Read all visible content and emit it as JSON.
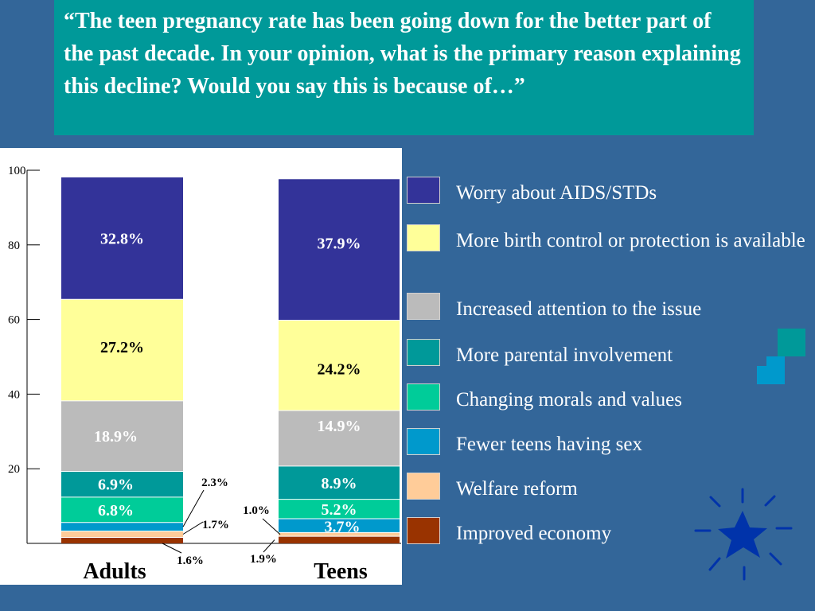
{
  "question": "“The teen pregnancy rate has been going down for the better part of the past decade.  In your opinion, what is the primary reason explaining this decline?  Would you say this is because of…”",
  "colors": {
    "background": "#336699",
    "question_box": "#009999",
    "chart_panel": "#ffffff",
    "Worry about AIDS/STDs": "#333399",
    "More birth control or protection is available": "#ffff99",
    "Increased attention to the issue": "#bbbbbb",
    "More parental involvement": "#009999",
    "Changing morals and values": "#00cc99",
    "Fewer teens having sex": "#0099cc",
    "Welfare reform": "#ffcc99",
    "Improved economy": "#993300"
  },
  "legend": [
    "Worry about AIDS/STDs",
    "More birth control or protection is available",
    "Increased attention to the issue",
    "More parental involvement",
    "Changing morals and values",
    "Fewer teens having sex",
    "Welfare reform",
    "Improved economy"
  ],
  "decorations": [
    "teal-square-icon",
    "blue-square-icon",
    "star-burst-icon"
  ],
  "chart_data": {
    "type": "bar",
    "stacked": true,
    "title": "",
    "xlabel": "",
    "ylabel": "",
    "ylim": [
      0,
      100
    ],
    "yticks": [
      20,
      40,
      60,
      80,
      100
    ],
    "categories": [
      "Adults",
      "Teens"
    ],
    "series": [
      {
        "name": "Improved economy",
        "values": [
          1.6,
          1.9
        ],
        "labels": [
          "1.6%",
          "1.9%"
        ]
      },
      {
        "name": "Welfare reform",
        "values": [
          1.7,
          1.0
        ],
        "labels": [
          "1.7%",
          "1.0%"
        ]
      },
      {
        "name": "Fewer teens having sex",
        "values": [
          2.3,
          3.7
        ],
        "labels": [
          "2.3%",
          "3.7%"
        ]
      },
      {
        "name": "Changing morals and values",
        "values": [
          6.8,
          5.2
        ],
        "labels": [
          "6.8%",
          "5.2%"
        ]
      },
      {
        "name": "More parental involvement",
        "values": [
          6.9,
          8.9
        ],
        "labels": [
          "6.9%",
          "8.9%"
        ]
      },
      {
        "name": "Increased attention to the issue",
        "values": [
          18.9,
          14.9
        ],
        "labels": [
          "18.9%",
          "14.9%"
        ]
      },
      {
        "name": "More birth control or protection is available",
        "values": [
          27.2,
          24.2
        ],
        "labels": [
          "27.2%",
          "24.2%"
        ]
      },
      {
        "name": "Worry about AIDS/STDs",
        "values": [
          32.8,
          37.9
        ],
        "labels": [
          "32.8%",
          "37.9%"
        ]
      }
    ]
  }
}
